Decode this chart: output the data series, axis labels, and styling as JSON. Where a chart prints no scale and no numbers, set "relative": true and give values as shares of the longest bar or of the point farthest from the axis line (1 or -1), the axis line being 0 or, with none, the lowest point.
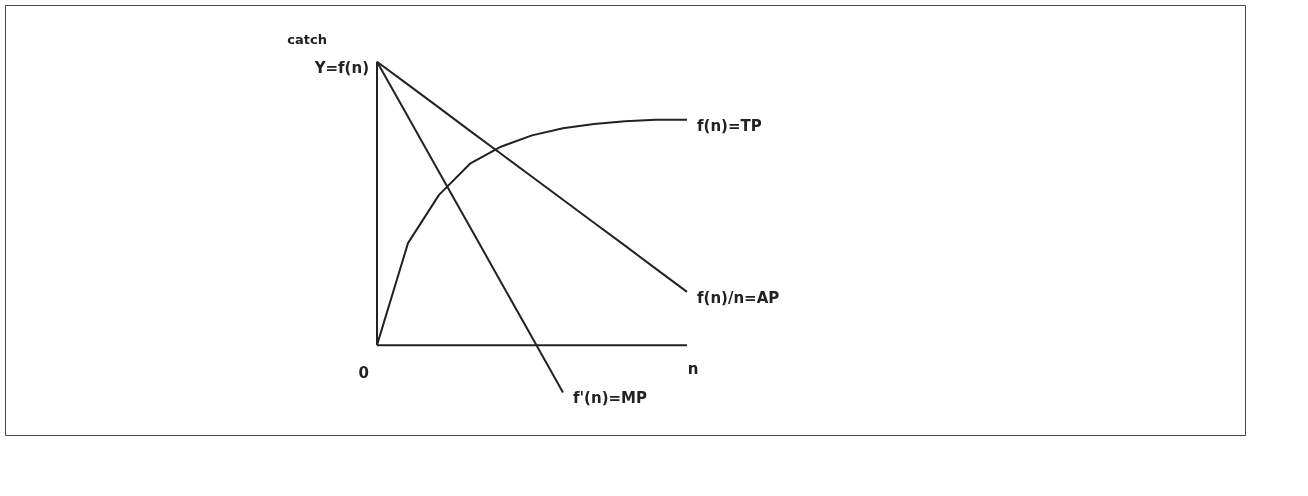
{
  "chart_data": {
    "type": "line",
    "relative": true,
    "ylabel": "catch",
    "xlabel": "n",
    "marker": "none",
    "line_style": "solid",
    "annotations": [
      "Y=f(n)",
      "0"
    ],
    "categories": [
      null,
      null,
      null,
      null,
      null,
      null,
      null,
      null,
      null,
      null,
      null
    ],
    "series": [
      {
        "name": "f(n)=TP",
        "color": "#222222",
        "values": [
          0,
          0.36,
          0.53,
          0.64,
          0.7,
          0.74,
          0.765,
          0.78,
          0.79,
          0.795,
          0.795
        ]
      },
      {
        "name": "f(n)/n=AP",
        "color": "#222222",
        "values": [
          1,
          0.919,
          0.838,
          0.756,
          0.675,
          0.594,
          0.513,
          0.432,
          0.351,
          0.269,
          0.188
        ]
      },
      {
        "name": "f'(n)=MP",
        "color": "#222222",
        "values": [
          1,
          0.806,
          0.611,
          0.417,
          0.222,
          0.028,
          -0.167,
          null,
          null,
          null,
          null
        ]
      }
    ]
  }
}
